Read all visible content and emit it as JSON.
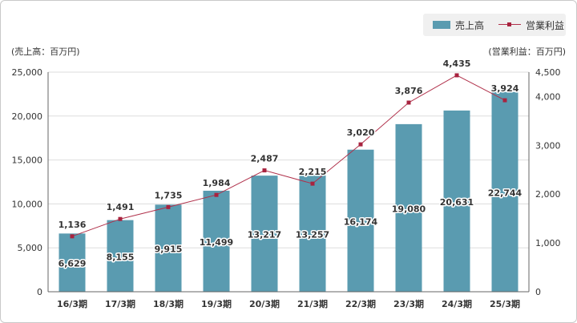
{
  "chart_data": {
    "type": "bar+line",
    "categories": [
      "16/3期",
      "17/3期",
      "18/3期",
      "19/3期",
      "20/3期",
      "21/3期",
      "22/3期",
      "23/3期",
      "24/3期",
      "25/3期"
    ],
    "series": [
      {
        "name": "売上高",
        "type": "bar",
        "axis": "left",
        "values": [
          6629,
          8155,
          9915,
          11499,
          13217,
          13257,
          16174,
          19080,
          20631,
          22744
        ],
        "labels": [
          "6,629",
          "8,155",
          "9,915",
          "11,499",
          "13,217",
          "13,257",
          "16,174",
          "19,080",
          "20,631",
          "22,744"
        ]
      },
      {
        "name": "営業利益",
        "type": "line",
        "axis": "right",
        "values": [
          1136,
          1491,
          1735,
          1984,
          2487,
          2215,
          3020,
          3876,
          4435,
          3924
        ],
        "labels": [
          "1,136",
          "1,491",
          "1,735",
          "1,984",
          "2,487",
          "2,215",
          "3,020",
          "3,876",
          "4,435",
          "3,924"
        ]
      }
    ],
    "y_left": {
      "label": "(売上高：百万円)",
      "range": [
        0,
        25000
      ],
      "ticks": [
        "0",
        "5,000",
        "10,000",
        "15,000",
        "20,000",
        "25,000"
      ]
    },
    "y_right": {
      "label": "(営業利益：百万円)",
      "range": [
        0,
        4500
      ],
      "ticks": [
        "0",
        "1,000",
        "2,000",
        "3,000",
        "4,000",
        "4,500"
      ]
    },
    "legend": {
      "position": "top-right",
      "items": [
        "売上高",
        "営業利益"
      ]
    },
    "colors": {
      "bar": "#5a9bb0",
      "line": "#b0304a",
      "marker": "#a8233f",
      "grid": "#dddddd"
    }
  }
}
